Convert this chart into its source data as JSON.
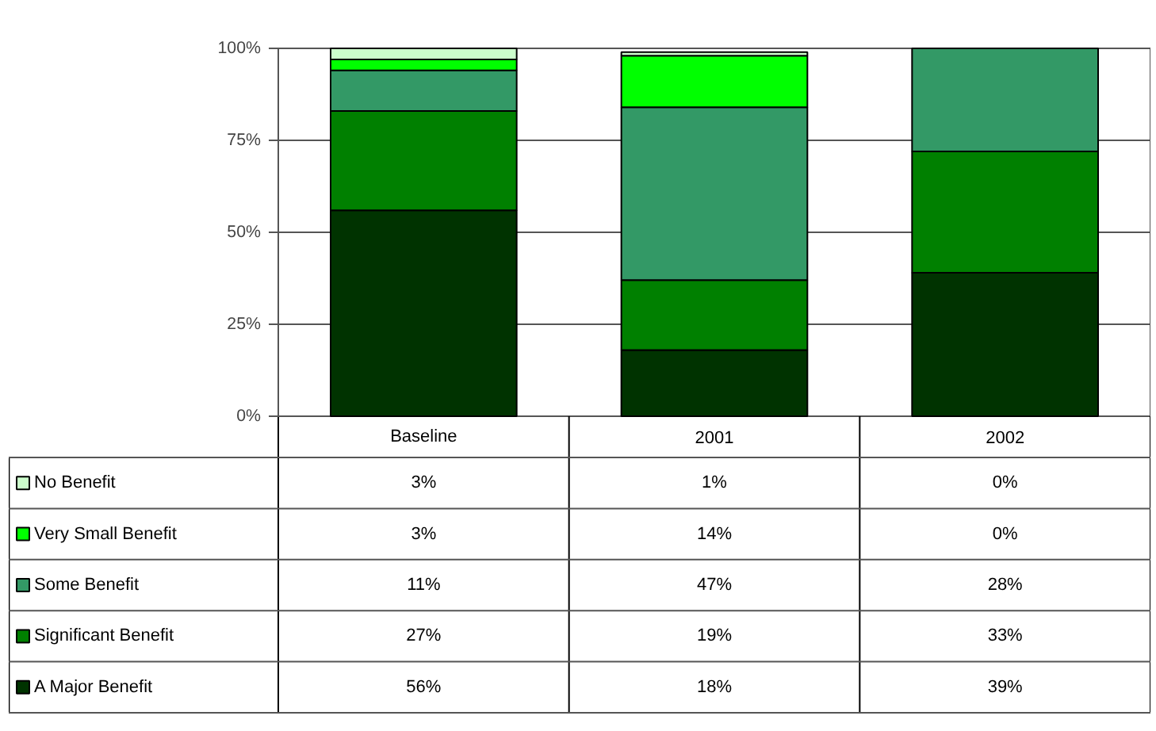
{
  "chart_data": {
    "type": "bar",
    "stacked": true,
    "categories": [
      "Baseline",
      "2001",
      "2002"
    ],
    "series": [
      {
        "name": "A Major Benefit",
        "color": "#003300",
        "values": [
          56,
          18,
          39
        ],
        "value_labels": [
          "56%",
          "18%",
          "39%"
        ]
      },
      {
        "name": "Significant Benefit",
        "color": "#008000",
        "values": [
          27,
          19,
          33
        ],
        "value_labels": [
          "27%",
          "19%",
          "33%"
        ]
      },
      {
        "name": "Some Benefit",
        "color": "#339966",
        "values": [
          11,
          47,
          28
        ],
        "value_labels": [
          "11%",
          "47%",
          "28%"
        ]
      },
      {
        "name": "Very Small Benefit",
        "color": "#00ff00",
        "values": [
          3,
          14,
          0
        ],
        "value_labels": [
          "3%",
          "14%",
          "0%"
        ]
      },
      {
        "name": "No Benefit",
        "color": "#ccffcc",
        "values": [
          3,
          1,
          0
        ],
        "value_labels": [
          "3%",
          "1%",
          "0%"
        ]
      }
    ],
    "ylim": [
      0,
      100
    ],
    "yticks": [
      {
        "value": 0,
        "label": "0%"
      },
      {
        "value": 25,
        "label": "25%"
      },
      {
        "value": 50,
        "label": "50%"
      },
      {
        "value": 75,
        "label": "75%"
      },
      {
        "value": 100,
        "label": "100%"
      }
    ],
    "grid": "y",
    "legend": "bottom"
  }
}
